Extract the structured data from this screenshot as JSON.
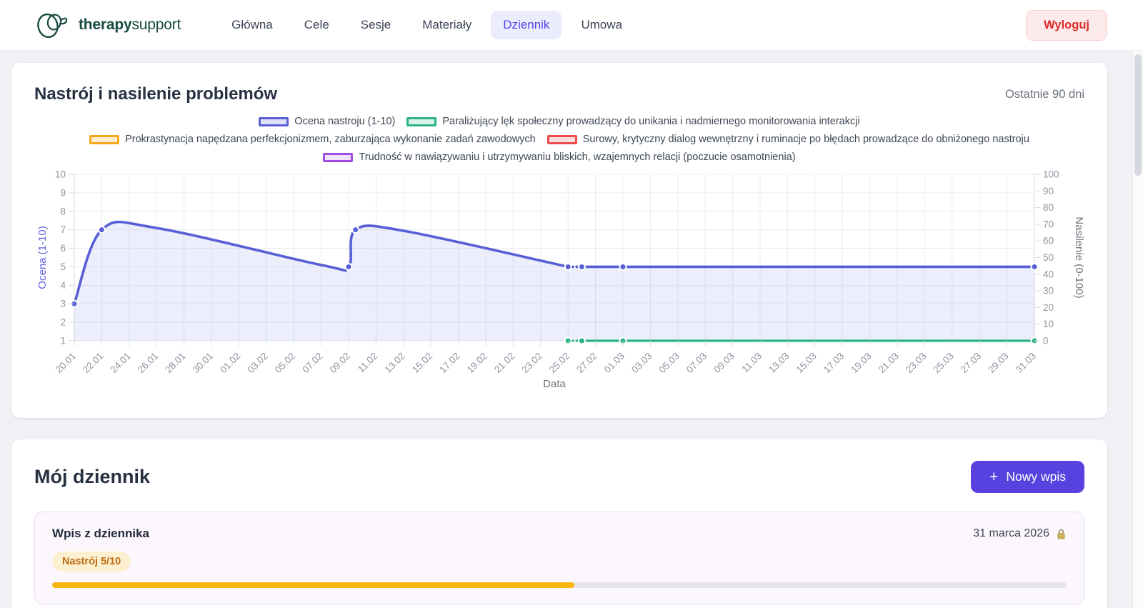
{
  "header": {
    "logo": {
      "bold": "therapy",
      "light": "support"
    },
    "nav_items": [
      {
        "label": "Główna",
        "active": false
      },
      {
        "label": "Cele",
        "active": false
      },
      {
        "label": "Sesje",
        "active": false
      },
      {
        "label": "Materiały",
        "active": false
      },
      {
        "label": "Dziennik",
        "active": true
      },
      {
        "label": "Umowa",
        "active": false
      }
    ],
    "logout_label": "Wyloguj"
  },
  "mood_card": {
    "title": "Nastrój i nasilenie problemów",
    "range_label": "Ostatnie 90 dni"
  },
  "chart_data": {
    "type": "line",
    "title": "Nastrój i nasilenie problemów",
    "xlabel": "Data",
    "legend_position": "top",
    "grid": true,
    "y_left": {
      "label": "Ocena (1-10)",
      "min": 1,
      "max": 10,
      "ticks": [
        10,
        9,
        8,
        7,
        6,
        5,
        4,
        3,
        2,
        1
      ],
      "color": "#6165dd"
    },
    "y_right": {
      "label": "Nasilenie (0-100)",
      "min": 0,
      "max": 100,
      "ticks": [
        100,
        90,
        80,
        70,
        60,
        50,
        40,
        30,
        20,
        10,
        0
      ],
      "color": "#6e7680"
    },
    "x_max_day": 70,
    "x_ticks": [
      {
        "label": "20.01",
        "day": 0
      },
      {
        "label": "22.01",
        "day": 2
      },
      {
        "label": "24.01",
        "day": 4
      },
      {
        "label": "26.01",
        "day": 6
      },
      {
        "label": "28.01",
        "day": 8
      },
      {
        "label": "30.01",
        "day": 10
      },
      {
        "label": "01.02",
        "day": 12
      },
      {
        "label": "03.02",
        "day": 14
      },
      {
        "label": "05.02",
        "day": 16
      },
      {
        "label": "07.02",
        "day": 18
      },
      {
        "label": "09.02",
        "day": 20
      },
      {
        "label": "11.02",
        "day": 22
      },
      {
        "label": "13.02",
        "day": 24
      },
      {
        "label": "15.02",
        "day": 26
      },
      {
        "label": "17.02",
        "day": 28
      },
      {
        "label": "19.02",
        "day": 30
      },
      {
        "label": "21.02",
        "day": 32
      },
      {
        "label": "23.02",
        "day": 34
      },
      {
        "label": "25.02",
        "day": 36
      },
      {
        "label": "27.02",
        "day": 38
      },
      {
        "label": "01.03",
        "day": 40
      },
      {
        "label": "03.03",
        "day": 42
      },
      {
        "label": "05.03",
        "day": 44
      },
      {
        "label": "07.03",
        "day": 46
      },
      {
        "label": "09.03",
        "day": 48
      },
      {
        "label": "11.03",
        "day": 50
      },
      {
        "label": "13.03",
        "day": 52
      },
      {
        "label": "15.03",
        "day": 54
      },
      {
        "label": "17.03",
        "day": 56
      },
      {
        "label": "19.03",
        "day": 58
      },
      {
        "label": "21.03",
        "day": 60
      },
      {
        "label": "23.03",
        "day": 62
      },
      {
        "label": "25.03",
        "day": 64
      },
      {
        "label": "27.03",
        "day": 66
      },
      {
        "label": "29.03",
        "day": 68
      },
      {
        "label": "31.03",
        "day": 70
      }
    ],
    "legend": [
      {
        "label": "Ocena nastroju (1-10)",
        "color": "#585fd6",
        "fill": "#dfe1f8"
      },
      {
        "label": "Paraliżujący lęk społeczny prowadzący do unikania i nadmiernego monitorowania interakcji",
        "color": "#2ab385",
        "fill": "#d9f3e8"
      },
      {
        "label": "Prokrastynacja napędzana perfekcjonizmem, zaburzająca wykonanie zadań zawodowych",
        "color": "#f5a81c",
        "fill": "#fdeecd"
      },
      {
        "label": "Surowy, krytyczny dialog wewnętrzny i ruminacje po błędach prowadzące do obniżonego nastroju",
        "color": "#ea4c4c",
        "fill": "#fbdede"
      },
      {
        "label": "Trudność w nawiązywaniu i utrzymywaniu bliskich, wzajemnych relacji (poczucie osamotnienia)",
        "color": "#a14ee0",
        "fill": "#f1e3fb"
      }
    ],
    "series": [
      {
        "name": "Ocena nastroju (1-10)",
        "axis": "left",
        "color": "#585fd6",
        "area_fill": "rgba(93,99,216,0.11)",
        "points": [
          {
            "date": "20.01",
            "day": 0,
            "value": 3
          },
          {
            "date": "22.01",
            "day": 2,
            "value": 7
          },
          {
            "date": "09.02",
            "day": 20,
            "value": 5
          },
          {
            "date": "09.02",
            "day": 20.5,
            "value": 7
          },
          {
            "date": "25.02",
            "day": 36,
            "value": 5
          },
          {
            "date": "26.02",
            "day": 37,
            "value": 5
          },
          {
            "date": "01.03",
            "day": 40,
            "value": 5
          },
          {
            "date": "31.03",
            "day": 70,
            "value": 5
          }
        ],
        "segments": [
          {
            "dashed": false,
            "curve": [
              [
                0,
                3
              ],
              [
                2,
                7
              ],
              [
                6,
                7.1
              ],
              [
                18,
                5.1
              ],
              [
                20,
                5
              ],
              [
                20.5,
                7
              ],
              [
                24,
                6.95
              ],
              [
                36,
                5
              ]
            ]
          },
          {
            "dashed": true,
            "curve": [
              [
                36,
                5
              ],
              [
                37,
                5
              ]
            ]
          },
          {
            "dashed": false,
            "curve": [
              [
                37,
                5
              ],
              [
                40,
                5
              ],
              [
                70,
                5
              ]
            ]
          }
        ]
      },
      {
        "name": "Paraliżujący lęk społeczny prowadzący do unikania i nadmiernego monitorowania interakcji",
        "axis": "right",
        "color": "#2ab385",
        "area_fill": null,
        "points": [
          {
            "date": "25.02",
            "day": 36,
            "value": 0
          },
          {
            "date": "26.02",
            "day": 37,
            "value": 0
          },
          {
            "date": "01.03",
            "day": 40,
            "value": 0
          },
          {
            "date": "31.03",
            "day": 70,
            "value": 0
          }
        ],
        "segments": [
          {
            "dashed": true,
            "curve": [
              [
                36,
                0
              ],
              [
                37,
                0
              ]
            ]
          },
          {
            "dashed": false,
            "curve": [
              [
                37,
                0
              ],
              [
                40,
                0
              ],
              [
                70,
                0
              ]
            ]
          }
        ]
      }
    ]
  },
  "journal": {
    "title": "Mój dziennik",
    "new_button": {
      "icon": "+",
      "label": "Nowy wpis"
    },
    "entry": {
      "title": "Wpis z dziennika",
      "date": "31 marca 2026",
      "mood_badge": "Nastrój 5/10",
      "mood_value": 5,
      "mood_max": 10,
      "progress_percent": 51.5
    }
  },
  "colors": {
    "accent_indigo": "#5742e0",
    "nav_active": "#4f46e5",
    "logout_red": "#df2b2b",
    "badge_amber_bg": "#fcf0d0",
    "badge_amber_text": "#c06c10",
    "progress_amber": "#f8b40f",
    "brand_teal": "#174a40",
    "mood_line": "#585fd6",
    "anxiety_line": "#2ab385"
  }
}
